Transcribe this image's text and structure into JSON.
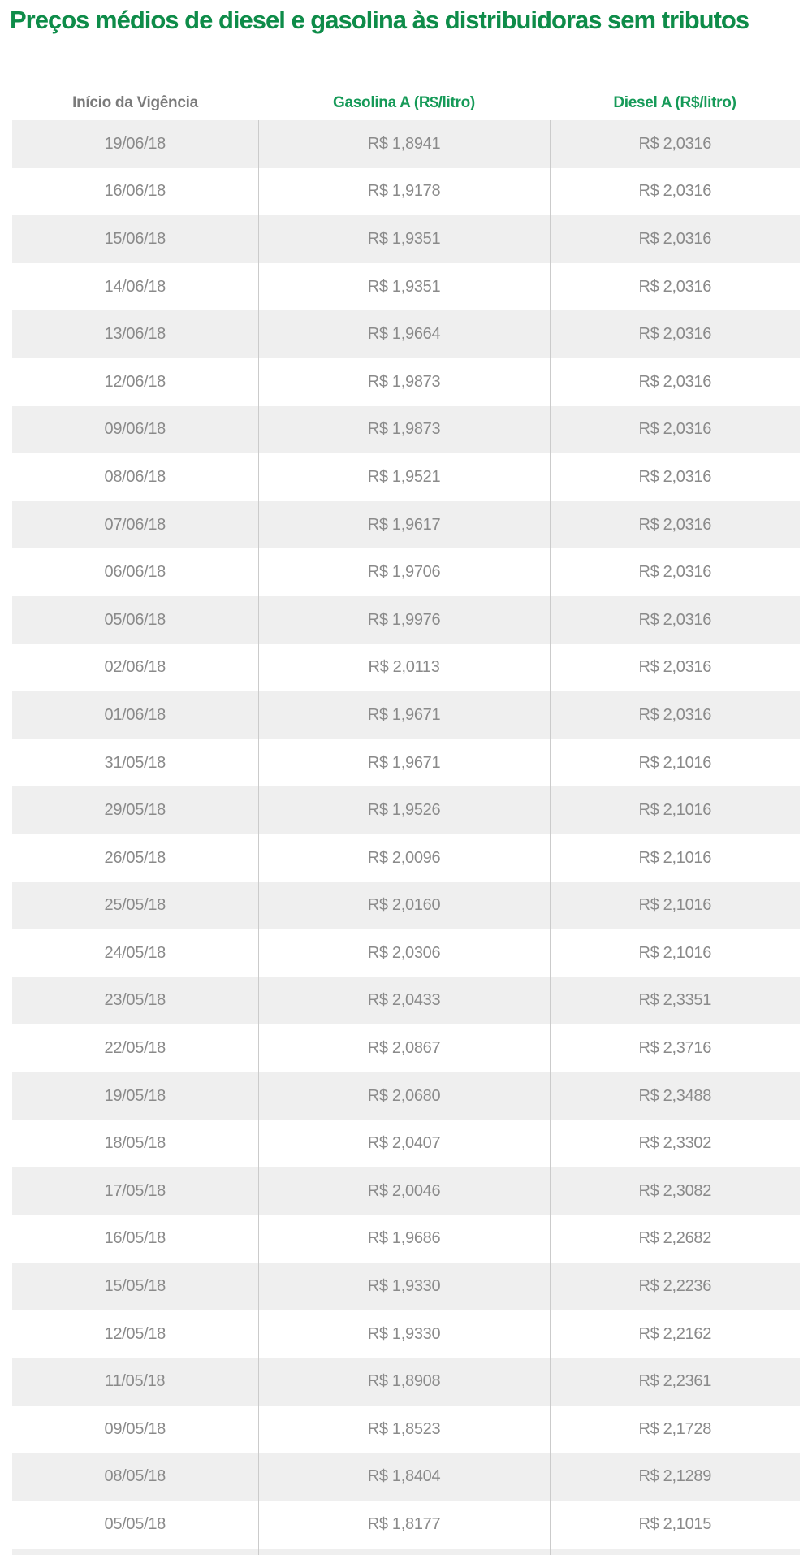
{
  "page": {
    "title": "Preços médios de diesel e gasolina às distribuidoras sem tributos"
  },
  "chart_data": {
    "type": "table",
    "title": "Preços médios de diesel e gasolina às distribuidoras sem tributos",
    "columns": [
      "Início da Vigência",
      "Gasolina A (R$/litro)",
      "Diesel A (R$/litro)"
    ],
    "rows": [
      [
        "19/06/18",
        "R$ 1,8941",
        "R$ 2,0316"
      ],
      [
        "16/06/18",
        "R$ 1,9178",
        "R$ 2,0316"
      ],
      [
        "15/06/18",
        "R$ 1,9351",
        "R$ 2,0316"
      ],
      [
        "14/06/18",
        "R$ 1,9351",
        "R$ 2,0316"
      ],
      [
        "13/06/18",
        "R$ 1,9664",
        "R$ 2,0316"
      ],
      [
        "12/06/18",
        "R$ 1,9873",
        "R$ 2,0316"
      ],
      [
        "09/06/18",
        "R$ 1,9873",
        "R$ 2,0316"
      ],
      [
        "08/06/18",
        "R$ 1,9521",
        "R$ 2,0316"
      ],
      [
        "07/06/18",
        "R$ 1,9617",
        "R$ 2,0316"
      ],
      [
        "06/06/18",
        "R$ 1,9706",
        "R$ 2,0316"
      ],
      [
        "05/06/18",
        "R$ 1,9976",
        "R$ 2,0316"
      ],
      [
        "02/06/18",
        "R$ 2,0113",
        "R$ 2,0316"
      ],
      [
        "01/06/18",
        "R$ 1,9671",
        "R$ 2,0316"
      ],
      [
        "31/05/18",
        "R$ 1,9671",
        "R$ 2,1016"
      ],
      [
        "29/05/18",
        "R$ 1,9526",
        "R$ 2,1016"
      ],
      [
        "26/05/18",
        "R$ 2,0096",
        "R$ 2,1016"
      ],
      [
        "25/05/18",
        "R$ 2,0160",
        "R$ 2,1016"
      ],
      [
        "24/05/18",
        "R$ 2,0306",
        "R$ 2,1016"
      ],
      [
        "23/05/18",
        "R$ 2,0433",
        "R$ 2,3351"
      ],
      [
        "22/05/18",
        "R$ 2,0867",
        "R$ 2,3716"
      ],
      [
        "19/05/18",
        "R$ 2,0680",
        "R$ 2,3488"
      ],
      [
        "18/05/18",
        "R$ 2,0407",
        "R$ 2,3302"
      ],
      [
        "17/05/18",
        "R$ 2,0046",
        "R$ 2,3082"
      ],
      [
        "16/05/18",
        "R$ 1,9686",
        "R$ 2,2682"
      ],
      [
        "15/05/18",
        "R$ 1,9330",
        "R$ 2,2236"
      ],
      [
        "12/05/18",
        "R$ 1,9330",
        "R$ 2,2162"
      ],
      [
        "11/05/18",
        "R$ 1,8908",
        "R$ 2,2361"
      ],
      [
        "09/05/18",
        "R$ 1,8523",
        "R$ 2,1728"
      ],
      [
        "08/05/18",
        "R$ 1,8404",
        "R$ 2,1289"
      ],
      [
        "05/05/18",
        "R$ 1,8177",
        "R$ 2,1015"
      ]
    ],
    "partial_next_row_visible": true,
    "layout_hints": {
      "row_striping": "odd rows light gray, even rows white",
      "column_dividers": "vertical light gray lines between columns only"
    }
  },
  "colors": {
    "title_green": "#0e8c49",
    "header_green": "#169a58",
    "header_gray": "#7b7b7b",
    "cell_text": "#8a8a8a",
    "row_stripe": "#efefef",
    "column_border": "#cbcbcb"
  }
}
